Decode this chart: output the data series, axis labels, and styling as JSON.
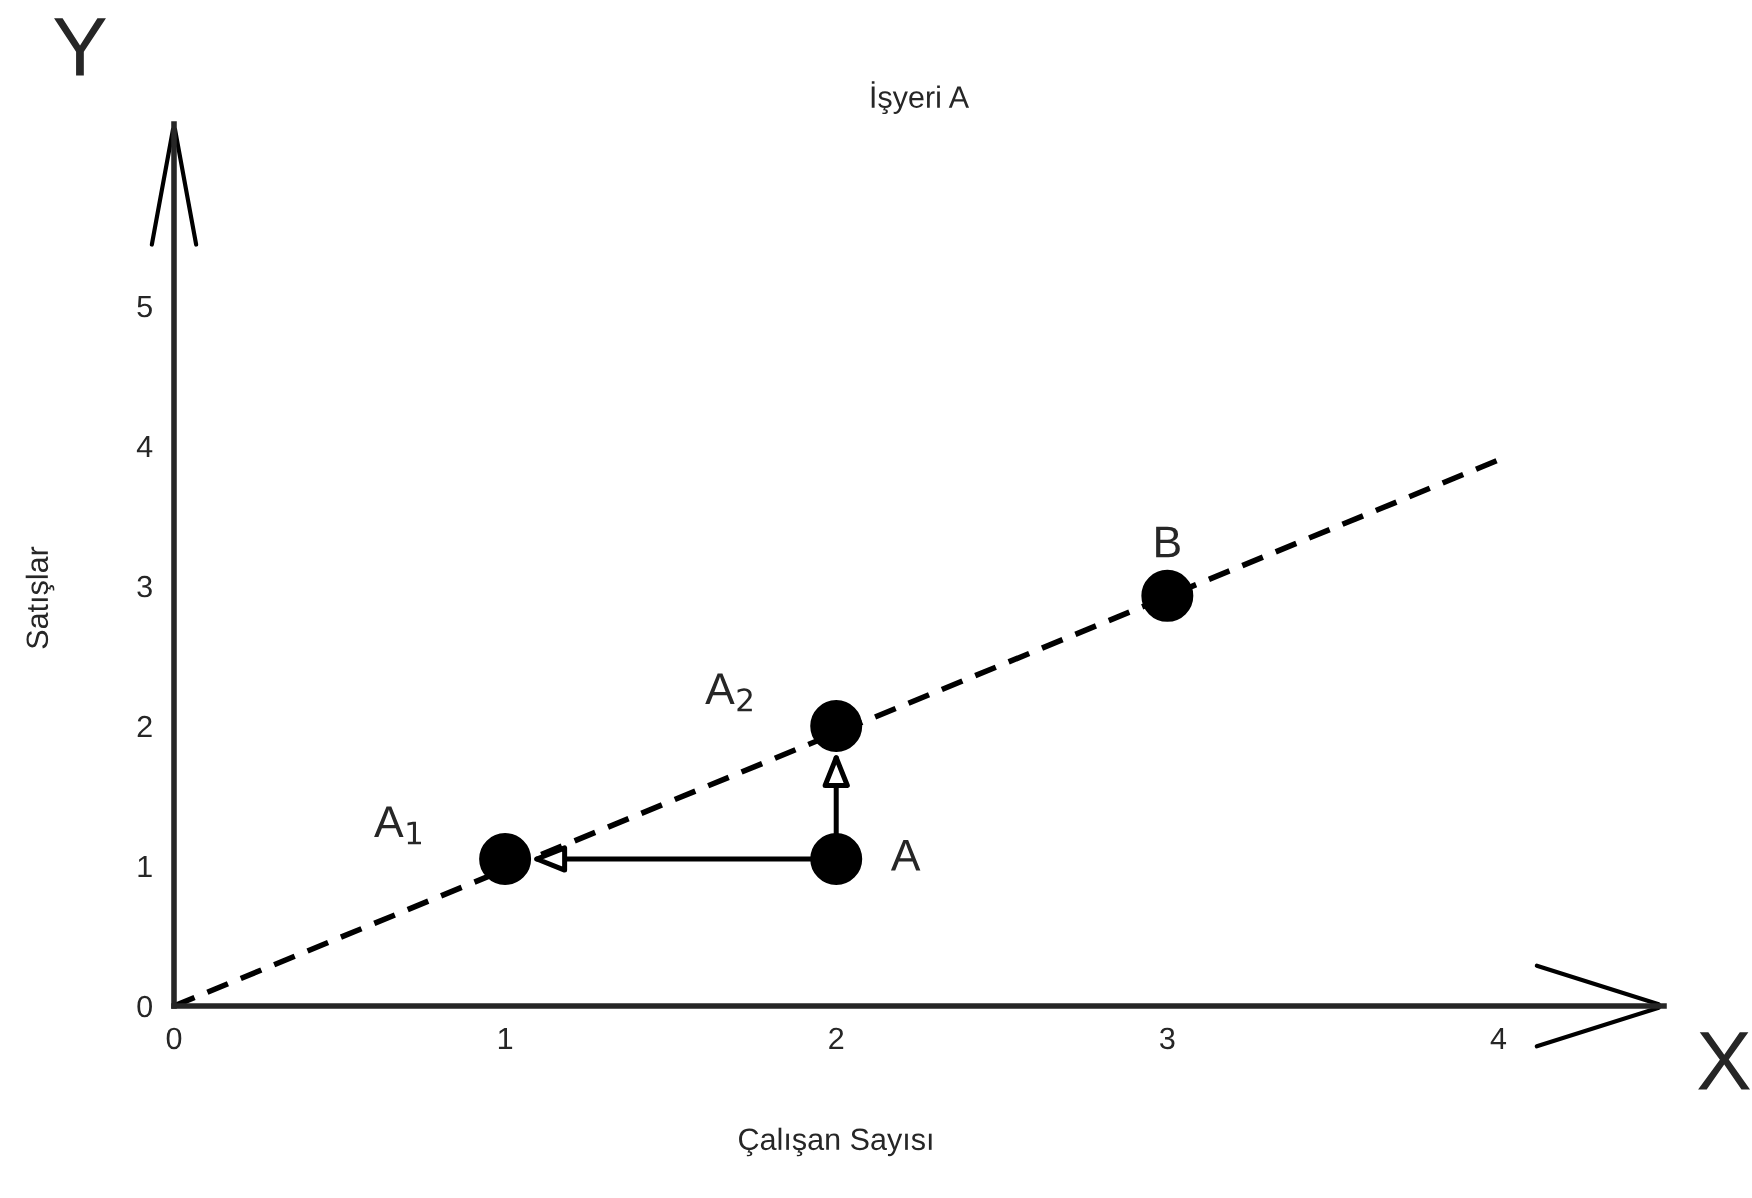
{
  "chart_data": {
    "type": "scatter",
    "title": "İşyeri A",
    "xlabel": "Çalışan Sayısı",
    "ylabel": "Satışlar",
    "xlim": [
      0,
      4.5
    ],
    "ylim": [
      0,
      6.3
    ],
    "xticks": [
      0,
      1,
      2,
      3,
      4
    ],
    "yticks": [
      0,
      1,
      2,
      3,
      4,
      5
    ],
    "grid": false,
    "series": [
      {
        "type": "line",
        "color": "#000000",
        "line_style": "dashed",
        "marker": "none",
        "x": [
          0,
          4
        ],
        "values": [
          0,
          3.9
        ]
      },
      {
        "color": "#000000",
        "marker": "circle",
        "x": [
          1,
          2,
          2,
          3
        ],
        "values": [
          1.05,
          1.05,
          2,
          2.93
        ]
      }
    ],
    "annotations": [
      {
        "text": "A$_{1}$",
        "x": 1,
        "y": 1.05
      },
      {
        "text": "A",
        "x": 2,
        "y": 1.05
      },
      {
        "text": "A$_{2}$",
        "x": 2,
        "y": 2
      },
      {
        "text": "B",
        "x": 3,
        "y": 2.93
      },
      "X",
      "Y"
    ]
  }
}
